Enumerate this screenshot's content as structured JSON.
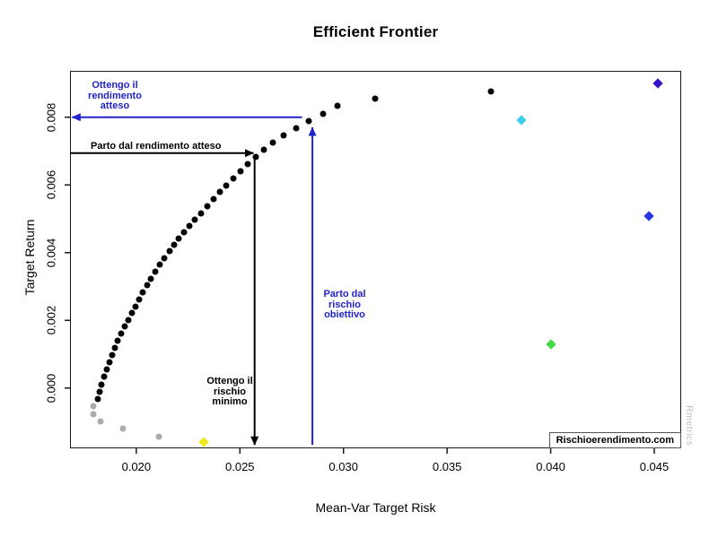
{
  "title": "Efficient Frontier",
  "axes": {
    "x_label": "Mean-Var Target Risk",
    "y_label": "Target Return"
  },
  "watermarks": {
    "site": "Rischioerendimento.com",
    "brand": "Rmetrics"
  },
  "colors": {
    "annotation_blue": "#2222CC",
    "annotation_black": "#000000",
    "frontier_black": "#000000",
    "inefficient_gray": "#ABABAB",
    "asset_yellow": "#EDE619",
    "asset_green": "#44D944",
    "asset_cyan": "#3CCCEC",
    "asset_blue": "#2638E0",
    "asset_violet": "#3A10C8"
  },
  "chart_data": {
    "type": "scatter",
    "title": "Efficient Frontier",
    "xlabel": "Mean-Var Target Risk",
    "ylabel": "Target Return",
    "xlim": [
      0.0168,
      0.0463
    ],
    "ylim": [
      -0.00178,
      0.00937
    ],
    "grid": false,
    "x_tick_values": [
      0.02,
      0.025,
      0.03,
      0.035,
      0.04,
      0.045
    ],
    "x_tick_labels": [
      "0.020",
      "0.025",
      "0.030",
      "0.035",
      "0.040",
      "0.045"
    ],
    "y_tick_values": [
      0.0,
      0.002,
      0.004,
      0.006,
      0.008
    ],
    "y_tick_labels": [
      "0.000",
      "0.002",
      "0.004",
      "0.006",
      "0.008"
    ],
    "series": [
      {
        "name": "efficient-frontier",
        "marker": "circle",
        "color": "#000000",
        "size": 7,
        "points": [
          [
            0.03713,
            0.00877
          ],
          [
            0.03151,
            0.00856
          ],
          [
            0.02969,
            0.00834
          ],
          [
            0.029,
            0.00811
          ],
          [
            0.02831,
            0.00789
          ],
          [
            0.0277,
            0.00768
          ],
          [
            0.02709,
            0.00747
          ],
          [
            0.02657,
            0.00726
          ],
          [
            0.02614,
            0.00705
          ],
          [
            0.02575,
            0.00683
          ],
          [
            0.02536,
            0.00662
          ],
          [
            0.02502,
            0.00641
          ],
          [
            0.02467,
            0.0062
          ],
          [
            0.02433,
            0.00599
          ],
          [
            0.02402,
            0.0058
          ],
          [
            0.02372,
            0.00559
          ],
          [
            0.02342,
            0.00538
          ],
          [
            0.02311,
            0.00517
          ],
          [
            0.02281,
            0.00498
          ],
          [
            0.02255,
            0.00479
          ],
          [
            0.02229,
            0.00461
          ],
          [
            0.02203,
            0.00442
          ],
          [
            0.02182,
            0.00424
          ],
          [
            0.0216,
            0.00405
          ],
          [
            0.02134,
            0.00384
          ],
          [
            0.02112,
            0.00366
          ],
          [
            0.02091,
            0.00344
          ],
          [
            0.02069,
            0.00323
          ],
          [
            0.02052,
            0.00305
          ],
          [
            0.0203,
            0.00283
          ],
          [
            0.02013,
            0.00262
          ],
          [
            0.01996,
            0.00241
          ],
          [
            0.01978,
            0.00222
          ],
          [
            0.01961,
            0.00201
          ],
          [
            0.01944,
            0.00183
          ],
          [
            0.01926,
            0.00162
          ],
          [
            0.01909,
            0.0014
          ],
          [
            0.01896,
            0.00119
          ],
          [
            0.01883,
            0.00098
          ],
          [
            0.0187,
            0.00077
          ],
          [
            0.01857,
            0.00056
          ],
          [
            0.01844,
            0.00035
          ],
          [
            0.01831,
            0.00011
          ],
          [
            0.01823,
            -0.0001
          ],
          [
            0.01814,
            -0.00032
          ]
        ]
      },
      {
        "name": "inefficient-branch",
        "marker": "circle",
        "color": "#ABABAB",
        "size": 7,
        "points": [
          [
            0.01792,
            -0.00053
          ],
          [
            0.01792,
            -0.00077
          ],
          [
            0.01827,
            -0.00098
          ],
          [
            0.01935,
            -0.00119
          ],
          [
            0.02108,
            -0.00143
          ]
        ]
      },
      {
        "name": "single-assets",
        "marker": "diamond",
        "size": 8,
        "points": [
          {
            "x": 0.02324,
            "y": -0.00159,
            "color": "#EDE619"
          },
          {
            "x": 0.04003,
            "y": 0.0013,
            "color": "#44D944"
          },
          {
            "x": 0.0386,
            "y": 0.00792,
            "color": "#3CCCEC"
          },
          {
            "x": 0.04474,
            "y": 0.00509,
            "color": "#2638E0"
          },
          {
            "x": 0.04517,
            "y": 0.00899,
            "color": "#3A10C8"
          }
        ]
      }
    ],
    "annotations": [
      {
        "id": "get-expected-return",
        "text": "Ottengo il\nrendimento\natteso",
        "color": "#2222CC",
        "line": [
          [
            0.028,
            0.008
          ],
          [
            0.0169,
            0.008
          ]
        ]
      },
      {
        "id": "start-expected-return",
        "text": "Parto dal rendimento atteso",
        "color": "#000000",
        "line": [
          [
            0.0168,
            0.00694
          ],
          [
            0.02566,
            0.00694
          ]
        ]
      },
      {
        "id": "get-min-risk",
        "text": "Ottengo il\nrischio\nminimo",
        "color": "#000000",
        "line": [
          [
            0.02571,
            0.00676
          ],
          [
            0.02571,
            -0.00168
          ]
        ]
      },
      {
        "id": "start-target-risk",
        "text": "Parto dal\nrischio\nobiettivo",
        "color": "#2222CC",
        "line": [
          [
            0.0285,
            -0.00168
          ],
          [
            0.0285,
            0.0077
          ]
        ]
      }
    ]
  }
}
